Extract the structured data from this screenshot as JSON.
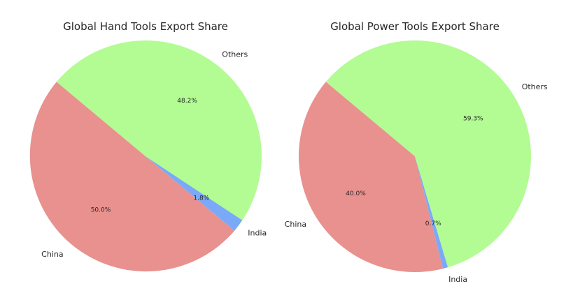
{
  "chart_data": [
    {
      "type": "pie",
      "title": "Global Hand Tools Export Share",
      "slices": [
        {
          "label": "China",
          "value": 50.0,
          "pct_label": "50.0%",
          "color": "#e8918f"
        },
        {
          "label": "India",
          "value": 1.8,
          "pct_label": "1.8%",
          "color": "#7aaaf7"
        },
        {
          "label": "Others",
          "value": 48.2,
          "pct_label": "48.2%",
          "color": "#b3fb93"
        }
      ],
      "start_angle_deg": 140,
      "direction": "counterclockwise"
    },
    {
      "type": "pie",
      "title": "Global Power Tools Export Share",
      "slices": [
        {
          "label": "China",
          "value": 40.0,
          "pct_label": "40.0%",
          "color": "#e8918f"
        },
        {
          "label": "India",
          "value": 0.7,
          "pct_label": "0.7%",
          "color": "#7aaaf7"
        },
        {
          "label": "Others",
          "value": 59.3,
          "pct_label": "59.3%",
          "color": "#b3fb93"
        }
      ],
      "start_angle_deg": 140,
      "direction": "counterclockwise"
    }
  ]
}
